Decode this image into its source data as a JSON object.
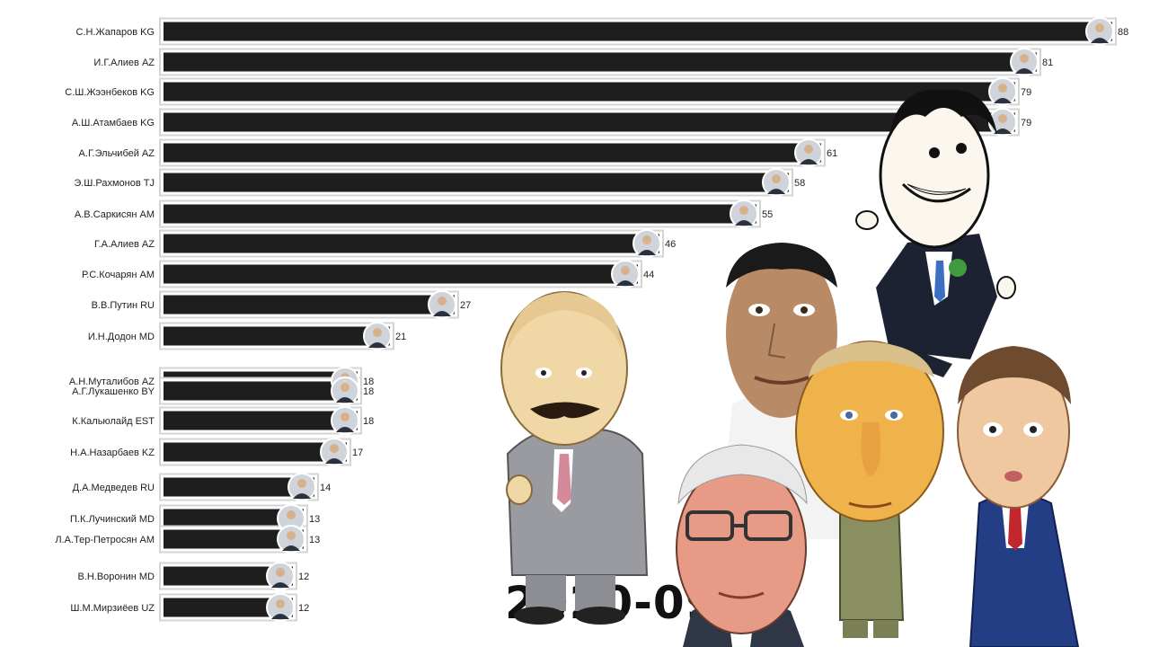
{
  "chart_data": {
    "type": "bar",
    "orientation": "horizontal",
    "period": "2020-09",
    "bar_color": "#1e1e1e",
    "frame_color": "#d4d4d4",
    "categories": [
      "С.Н.Жапаров KG",
      "И.Г.Алиев AZ",
      "С.Ш.Жээнбеков KG",
      "А.Ш.Атамбаев KG",
      "А.Г.Эльчибей AZ",
      "Э.Ш.Рахмонов TJ",
      "А.В.Саркисян  AM",
      "Г.А.Алиев AZ",
      "Р.С.Кочарян AM",
      "В.В.Путин RU",
      "И.Н.Додон MD",
      "А.Н.Муталибов AZ",
      "А.Г.Лукашенко BY",
      "К.Кальюлайд EST",
      "Н.А.Назарбаев KZ",
      "Д.А.Медведев RU",
      "П.К.Лучинский MD",
      "Л.А.Тер-Петросян AM",
      "В.Н.Воронин MD",
      "Ш.М.Мирзиёев UZ"
    ],
    "values": [
      88,
      81,
      79,
      79,
      61,
      58,
      55,
      46,
      44,
      27,
      21,
      18,
      18,
      18,
      17,
      14,
      13,
      13,
      12,
      12
    ],
    "value_labels": [
      "88",
      "81",
      "79",
      "79",
      "61",
      "58",
      "55",
      "46",
      "44",
      "27",
      "21",
      "18",
      "18",
      "18",
      "17",
      "14",
      "13",
      "13",
      "12",
      "12"
    ]
  }
}
